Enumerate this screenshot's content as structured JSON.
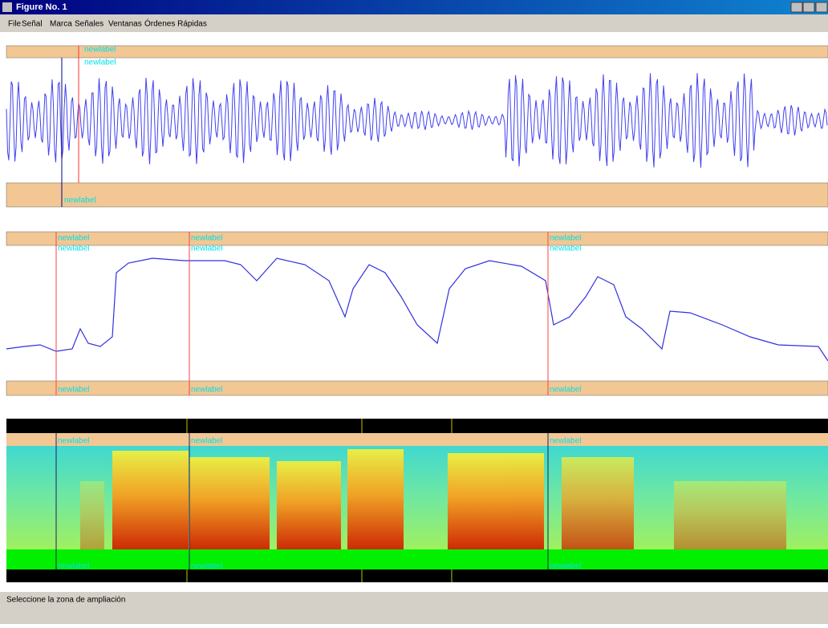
{
  "window": {
    "title": "Figure No. 1"
  },
  "menu": [
    "File",
    "Señal",
    "Marca",
    "Señales",
    "Ventanas",
    "Órdenes Rápidas"
  ],
  "panels": [
    {
      "labels": [
        "newlabel",
        "newlabel",
        "newlabel"
      ]
    },
    {
      "labels": [
        "newlabel",
        "newlabel",
        "newlabel",
        "newlabel",
        "newlabel",
        "newlabel",
        "newlabel",
        "newlabel",
        "newlabel"
      ]
    },
    {
      "labels": [
        "newlabel",
        "newlabel",
        "newlabel",
        "newlabel",
        "newlabel",
        "newlabel"
      ]
    }
  ],
  "status": "Seleccione la zona de ampliación"
}
